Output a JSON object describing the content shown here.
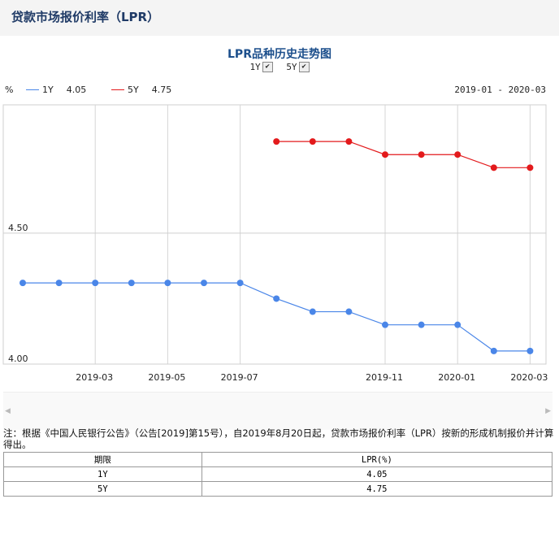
{
  "page_title": "贷款市场报价利率（LPR）",
  "chart": {
    "title": "LPR品种历史走势图",
    "toggles": [
      {
        "label": "1Y",
        "checked": true
      },
      {
        "label": "5Y",
        "checked": true
      }
    ],
    "unit": "%",
    "legend": [
      {
        "name": "1Y",
        "value": "4.05",
        "color": "#4a86e8"
      },
      {
        "name": "5Y",
        "value": "4.75",
        "color": "#e31a1c"
      }
    ],
    "range": "2019-01 - 2020-03"
  },
  "chart_data": {
    "type": "line",
    "title": "LPR品种历史走势图",
    "xlabel": "",
    "ylabel": "%",
    "x": [
      "2019-01",
      "2019-02",
      "2019-03",
      "2019-04",
      "2019-05",
      "2019-06",
      "2019-07",
      "2019-08",
      "2019-09",
      "2019-10",
      "2019-11",
      "2019-12",
      "2020-01",
      "2020-02",
      "2020-03"
    ],
    "x_tick_labels": [
      "2019-03",
      "2019-05",
      "2019-07",
      "2019-11",
      "2020-01",
      "2020-03"
    ],
    "y_tick_labels": [
      "4.50",
      "4.00"
    ],
    "ylim": [
      4.0,
      4.99
    ],
    "grid": true,
    "legend_position": "top-left",
    "series": [
      {
        "name": "1Y",
        "color": "#4a86e8",
        "values": [
          4.31,
          4.31,
          4.31,
          4.31,
          4.31,
          4.31,
          4.31,
          4.25,
          4.2,
          4.2,
          4.15,
          4.15,
          4.15,
          4.05,
          4.05
        ]
      },
      {
        "name": "5Y",
        "color": "#e31a1c",
        "values": [
          null,
          null,
          null,
          null,
          null,
          null,
          null,
          4.85,
          4.85,
          4.85,
          4.8,
          4.8,
          4.8,
          4.75,
          4.75
        ]
      }
    ]
  },
  "note": "注：根据《中国人民银行公告》（公告[2019]第15号），自2019年8月20日起，贷款市场报价利率（LPR）按新的形成机制报价并计算得出。",
  "table": {
    "headers": [
      "期限",
      "LPR(%)"
    ],
    "rows": [
      [
        "1Y",
        "4.05"
      ],
      [
        "5Y",
        "4.75"
      ]
    ]
  }
}
